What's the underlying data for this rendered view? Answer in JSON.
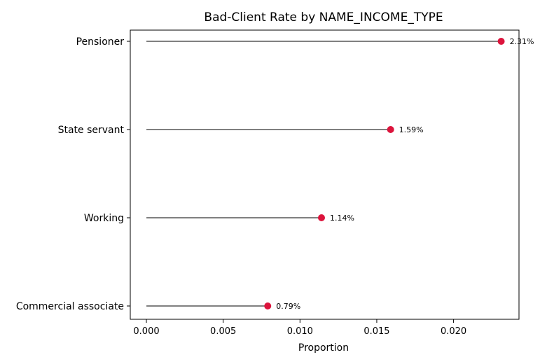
{
  "chart_data": {
    "type": "lollipop",
    "title": "Bad-Client Rate by NAME_INCOME_TYPE",
    "xlabel": "Proportion",
    "ylabel": "",
    "categories": [
      "Pensioner",
      "State servant",
      "Working",
      "Commercial associate"
    ],
    "values": [
      0.0231,
      0.0159,
      0.0114,
      0.0079
    ],
    "value_labels": [
      "2.31%",
      "1.59%",
      "1.14%",
      "0.79%"
    ],
    "xlim": [
      -0.00105,
      0.02426
    ],
    "xticks": [
      0.0,
      0.005,
      0.01,
      0.015,
      0.02
    ],
    "xtick_labels": [
      "0.000",
      "0.005",
      "0.010",
      "0.015",
      "0.020"
    ],
    "grid": false,
    "colors": {
      "stem": "#808080",
      "marker": "#dc143c",
      "axes": "#000000",
      "background": "#ffffff"
    }
  }
}
